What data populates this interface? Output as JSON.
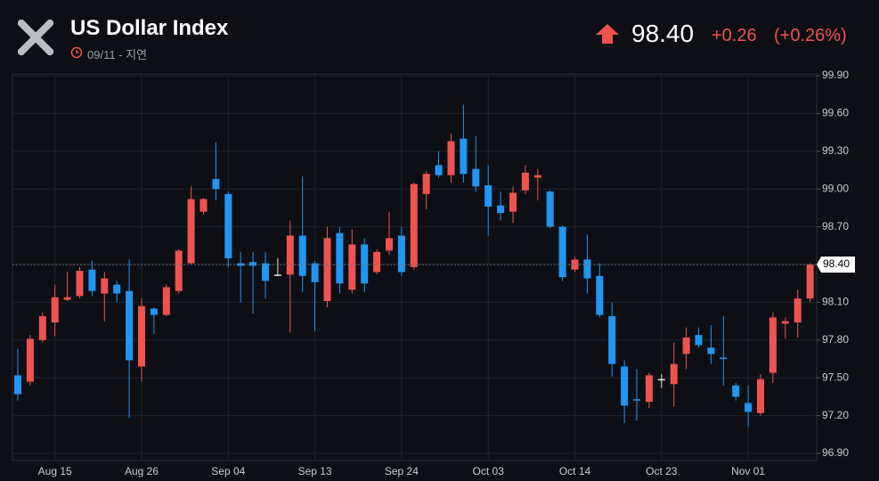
{
  "header": {
    "title": "US Dollar Index",
    "time": "09/11 - 지연",
    "price": "98.40",
    "change": "+0.26",
    "change_pct": "(+0.26%)"
  },
  "chart_data": {
    "type": "candlestick",
    "categories": [
      null,
      null,
      null,
      "Aug 15",
      null,
      null,
      null,
      null,
      null,
      null,
      "Aug 26",
      null,
      null,
      null,
      null,
      null,
      null,
      "Sep 04",
      null,
      null,
      null,
      null,
      null,
      null,
      "Sep 13",
      null,
      null,
      null,
      null,
      null,
      null,
      "Sep 24",
      null,
      null,
      null,
      null,
      null,
      null,
      "Oct 03",
      null,
      null,
      null,
      null,
      null,
      null,
      "Oct 14",
      null,
      null,
      null,
      null,
      null,
      null,
      "Oct 23",
      null,
      null,
      null,
      null,
      null,
      null,
      "Nov 01",
      null,
      null,
      null,
      null,
      null
    ],
    "open": [
      97.52,
      97.47,
      97.8,
      97.94,
      98.12,
      98.15,
      98.36,
      98.17,
      98.24,
      98.19,
      97.59,
      98.05,
      98.0,
      98.19,
      98.41,
      98.82,
      99.08,
      98.96,
      98.41,
      98.42,
      98.41,
      98.32,
      98.32,
      98.63,
      98.41,
      98.11,
      98.65,
      98.2,
      98.56,
      98.34,
      98.51,
      98.63,
      98.38,
      98.96,
      99.19,
      99.11,
      99.4,
      99.16,
      99.03,
      98.87,
      98.82,
      98.99,
      99.09,
      98.98,
      98.7,
      98.36,
      98.44,
      98.31,
      97.99,
      97.59,
      97.33,
      97.31,
      97.49,
      97.45,
      97.69,
      97.84,
      97.74,
      97.66,
      97.44,
      97.3,
      97.22,
      97.54,
      97.93,
      97.94,
      98.13
    ],
    "high": [
      97.73,
      97.84,
      98.02,
      98.24,
      98.34,
      98.38,
      98.43,
      98.34,
      98.27,
      98.44,
      98.13,
      98.06,
      98.24,
      98.52,
      99.02,
      98.93,
      99.37,
      98.98,
      98.5,
      98.5,
      98.5,
      98.45,
      98.75,
      99.1,
      98.43,
      98.7,
      98.7,
      98.68,
      98.61,
      98.52,
      98.82,
      98.7,
      99.05,
      99.14,
      99.3,
      99.44,
      99.67,
      99.42,
      99.19,
      98.98,
      99.02,
      99.19,
      99.16,
      98.99,
      98.71,
      98.46,
      98.64,
      98.41,
      98.1,
      97.64,
      97.57,
      97.54,
      97.53,
      97.78,
      97.9,
      97.9,
      97.92,
      97.99,
      97.46,
      97.44,
      97.53,
      98.02,
      97.98,
      98.2,
      98.41
    ],
    "low": [
      97.32,
      97.44,
      97.78,
      97.83,
      98.11,
      98.13,
      98.15,
      97.95,
      98.1,
      97.18,
      97.47,
      97.85,
      97.99,
      98.17,
      98.4,
      98.8,
      98.91,
      98.38,
      98.1,
      98.01,
      98.13,
      98.31,
      97.86,
      98.18,
      97.87,
      98.06,
      98.17,
      98.17,
      98.18,
      98.32,
      98.48,
      98.31,
      98.36,
      98.84,
      99.09,
      99.05,
      99.05,
      98.98,
      98.63,
      98.75,
      98.73,
      98.96,
      98.91,
      98.69,
      98.27,
      98.34,
      98.17,
      97.98,
      97.51,
      97.14,
      97.16,
      97.26,
      97.42,
      97.27,
      97.57,
      97.74,
      97.61,
      97.44,
      97.32,
      97.11,
      97.2,
      97.46,
      97.81,
      97.82,
      98.1
    ],
    "close": [
      97.37,
      97.81,
      97.99,
      98.14,
      98.14,
      98.35,
      98.19,
      98.29,
      98.17,
      97.64,
      98.07,
      98.0,
      98.22,
      98.51,
      98.92,
      98.92,
      99.0,
      98.45,
      98.39,
      98.39,
      98.27,
      98.32,
      98.63,
      98.31,
      98.26,
      98.61,
      98.25,
      98.56,
      98.25,
      98.5,
      98.61,
      98.34,
      99.04,
      99.12,
      99.11,
      99.38,
      99.12,
      99.02,
      98.86,
      98.81,
      98.97,
      99.13,
      99.11,
      98.7,
      98.3,
      98.44,
      98.29,
      98.0,
      97.61,
      97.28,
      97.32,
      97.52,
      97.49,
      97.61,
      97.82,
      97.76,
      97.69,
      97.65,
      97.35,
      97.23,
      97.49,
      97.98,
      97.95,
      98.13,
      98.4
    ],
    "up_color": "#ef5350",
    "down_color": "#2196f3",
    "flat_color": "#e6e6e6",
    "ylim": [
      96.9,
      99.9
    ],
    "yticks": [
      {
        "value": 96.9,
        "label": "96.90"
      },
      {
        "value": 97.2,
        "label": "97.20"
      },
      {
        "value": 97.5,
        "label": "97.50"
      },
      {
        "value": 97.8,
        "label": "97.80"
      },
      {
        "value": 98.1,
        "label": "98.10"
      },
      {
        "value": 98.4,
        "label": "98.40"
      },
      {
        "value": 98.7,
        "label": "98.70"
      },
      {
        "value": 99,
        "label": "99.00"
      },
      {
        "value": 99.3,
        "label": "99.30"
      },
      {
        "value": 99.6,
        "label": "99.60"
      },
      {
        "value": 99.9,
        "label": "99.90"
      }
    ],
    "last_price": {
      "value": 98.4,
      "label": "98.40"
    },
    "grid": true
  }
}
